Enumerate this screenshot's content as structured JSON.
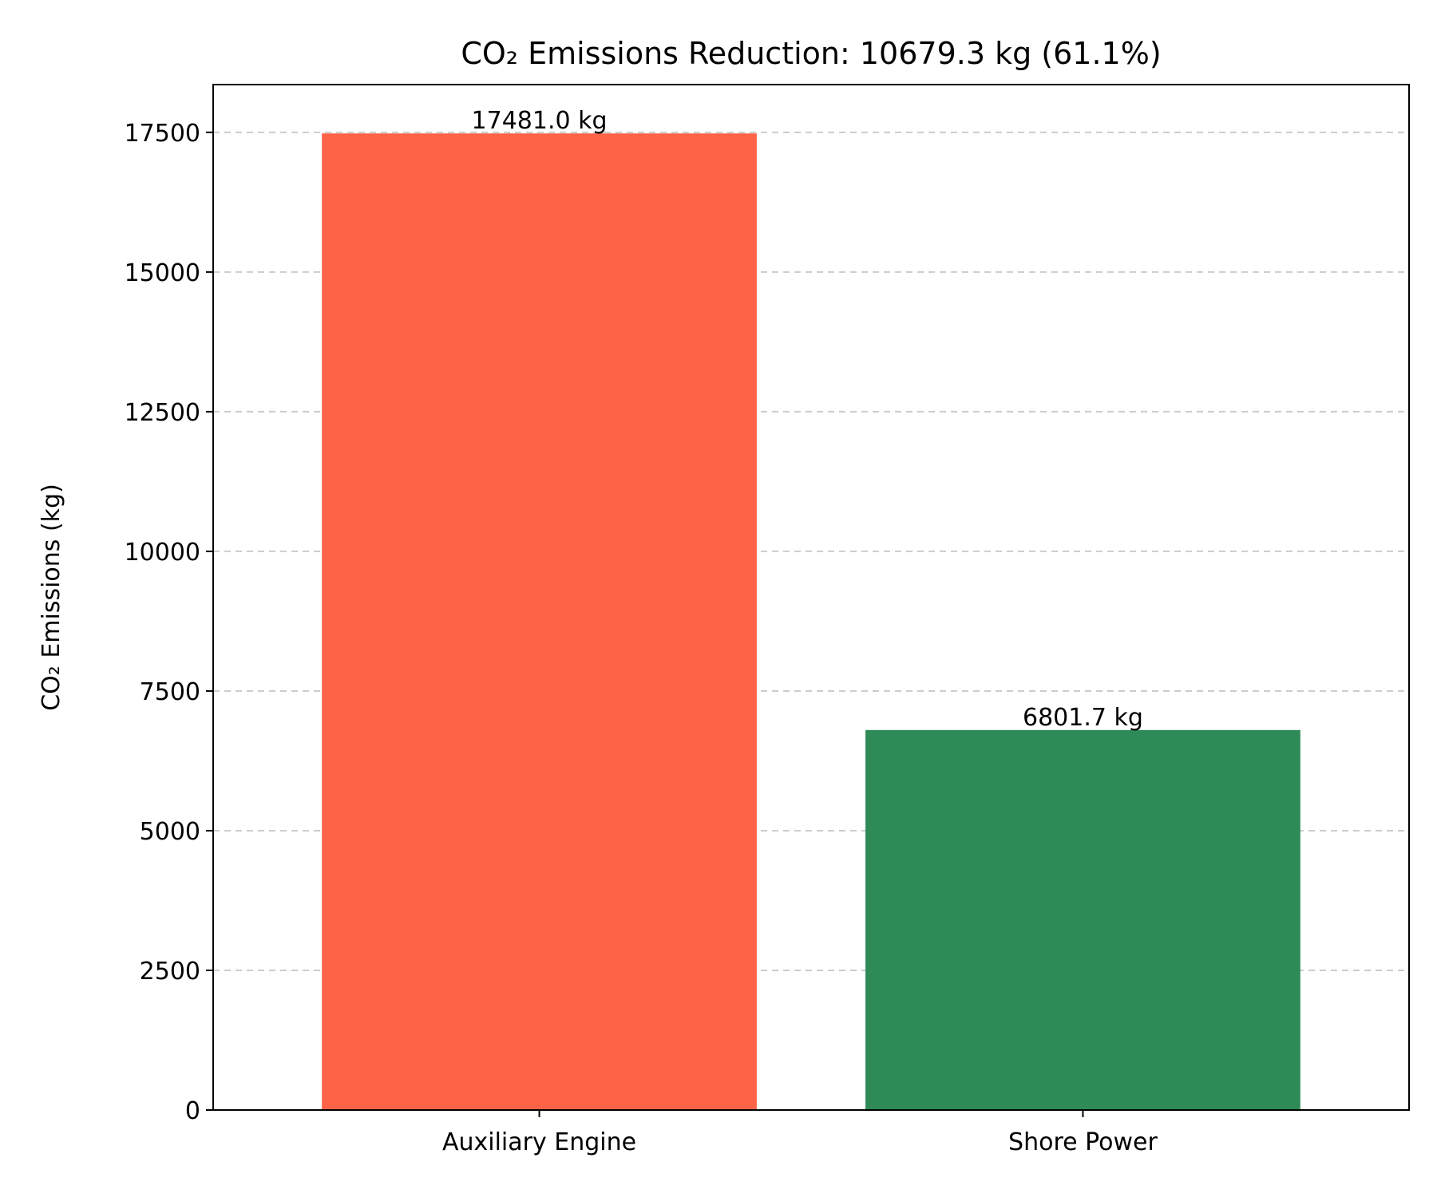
{
  "chart_data": {
    "type": "bar",
    "title": "CO₂ Emissions Reduction: 10679.3 kg (61.1%)",
    "xlabel": "",
    "ylabel": "CO₂ Emissions (kg)",
    "categories": [
      "Auxiliary Engine",
      "Shore Power"
    ],
    "values": [
      17481.0,
      6801.7
    ],
    "data_labels": [
      "17481.0 kg",
      "6801.7 kg"
    ],
    "colors": [
      "#ff6347",
      "#2e8b57"
    ],
    "ylim": [
      0,
      18355
    ],
    "yticks": [
      0,
      2500,
      5000,
      7500,
      10000,
      12500,
      15000,
      17500
    ],
    "grid": "y-dashed",
    "legend": "none"
  }
}
